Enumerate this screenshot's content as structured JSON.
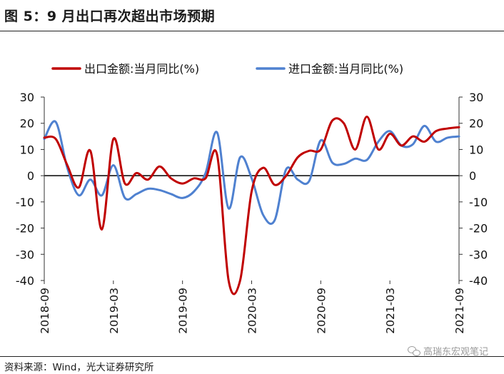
{
  "header": {
    "title": "图 5：9 月出口再次超出市场预期"
  },
  "footer": {
    "source": "资料来源：Wind，光大证券研究所",
    "watermark": "高瑞东宏观笔记"
  },
  "colors": {
    "export": "#c00000",
    "import": "#4f81d0"
  },
  "chart_data": {
    "type": "line",
    "x_tick_labels": [
      "2018-09",
      "2019-03",
      "2019-09",
      "2020-03",
      "2020-09",
      "2021-03",
      "2021-09"
    ],
    "x": [
      "2018-09",
      "2018-10",
      "2018-11",
      "2018-12",
      "2019-01",
      "2019-02",
      "2019-03",
      "2019-04",
      "2019-05",
      "2019-06",
      "2019-07",
      "2019-08",
      "2019-09",
      "2019-10",
      "2019-11",
      "2019-12",
      "2020-01",
      "2020-02",
      "2020-03",
      "2020-04",
      "2020-05",
      "2020-06",
      "2020-07",
      "2020-08",
      "2020-09",
      "2020-10",
      "2020-11",
      "2020-12",
      "2021-01",
      "2021-02",
      "2021-03",
      "2021-04",
      "2021-05",
      "2021-06",
      "2021-07",
      "2021-08",
      "2021-09"
    ],
    "y_left": {
      "ticks": [
        30,
        20,
        10,
        0,
        -10,
        -20,
        -30,
        -40
      ],
      "range": [
        -40,
        30
      ]
    },
    "y_right": {
      "ticks": [
        30,
        20,
        10,
        0,
        -10,
        -20,
        -30,
        -40
      ],
      "range": [
        -40,
        30
      ]
    },
    "series": [
      {
        "name": "出口金额:当月同比(%)",
        "color": "#c00000",
        "values": [
          14.5,
          14,
          4,
          -4.5,
          9.5,
          -20.5,
          14,
          -3,
          1,
          -1.5,
          3.5,
          -1,
          -3,
          -1,
          -1,
          8,
          -40,
          -40,
          -6,
          3,
          -3.5,
          0,
          7,
          9.5,
          10,
          21,
          20,
          10,
          22.5,
          10,
          16,
          11.5,
          15,
          13,
          17,
          18,
          18.5
        ]
      },
      {
        "name": "进口金额:当月同比(%)",
        "color": "#4f81d0",
        "values": [
          14,
          20.5,
          3,
          -7.5,
          -1.5,
          -7.5,
          4,
          -8.5,
          -7,
          -5,
          -5.5,
          -7,
          -8.5,
          -6,
          1,
          16.5,
          -12.5,
          7,
          -1,
          -15,
          -17,
          2.5,
          -1.5,
          -2,
          13.5,
          5,
          4.5,
          6.5,
          6,
          13,
          17,
          11.5,
          12,
          19,
          13,
          14.5,
          15
        ]
      }
    ]
  }
}
